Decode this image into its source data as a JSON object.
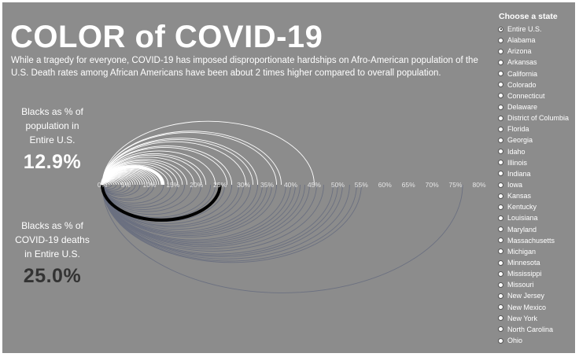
{
  "header": {
    "title": "COLOR of COVID-19",
    "subtitle": "While a tragedy for everyone, COVID-19 has imposed disproportionate hardships on Afro-American population of the U.S. Death rates among African Americans have been about 2 times higher compared to overall population."
  },
  "population_stat": {
    "label_line1": "Blacks as % of",
    "label_line2": "population in",
    "label_line3": "Entire U.S.",
    "value": "12.9%"
  },
  "deaths_stat": {
    "label_line1": "Blacks as % of",
    "label_line2": "COVID-19 deaths",
    "label_line3": "in Entire U.S.",
    "value": "25.0%"
  },
  "state_selector": {
    "title": "Choose a state",
    "selected": "Entire U.S.",
    "options": [
      "Entire U.S.",
      "Alabama",
      "Arizona",
      "Arkansas",
      "California",
      "Colorado",
      "Connecticut",
      "Delaware",
      "District of Columbia",
      "Florida",
      "Georgia",
      "Idaho",
      "Illinois",
      "Indiana",
      "Iowa",
      "Kansas",
      "Kentucky",
      "Louisiana",
      "Maryland",
      "Massachusetts",
      "Michigan",
      "Minnesota",
      "Mississippi",
      "Missouri",
      "New Jersey",
      "New Mexico",
      "New York",
      "North Carolina",
      "Ohio"
    ]
  },
  "colors": {
    "background": "#8c8c8c",
    "population_arc": "#ffffff",
    "deaths_arc": "#6b7080",
    "highlight_deaths_arc": "#000000"
  },
  "chart_data": {
    "type": "arc",
    "xlim": [
      0,
      80
    ],
    "tick_labels": [
      "0%",
      "5%",
      "10%",
      "15%",
      "20%",
      "25%",
      "30%",
      "35%",
      "40%",
      "45%",
      "50%",
      "55%",
      "60%",
      "65%",
      "70%",
      "75%",
      "80%"
    ],
    "tick_values": [
      0,
      5,
      10,
      15,
      20,
      25,
      30,
      35,
      40,
      45,
      50,
      55,
      60,
      65,
      70,
      75,
      80
    ],
    "highlight": {
      "name": "Entire U.S.",
      "population_pct": 12.9,
      "deaths_pct": 25.0
    },
    "population_pct": [
      1.0,
      1.5,
      2.0,
      2.5,
      3.0,
      3.5,
      4.0,
      4.5,
      5.0,
      5.5,
      6.0,
      6.5,
      7.0,
      7.5,
      8.0,
      8.5,
      9.0,
      9.5,
      10.0,
      10.5,
      11.0,
      11.5,
      12.0,
      12.5,
      13.0,
      14.0,
      15.0,
      16.0,
      17.0,
      18.0,
      19.5,
      21.0,
      22.0,
      24.0,
      26.5,
      27.5,
      30.5,
      32.0,
      33.0,
      37.0,
      38.0,
      45.0
    ],
    "deaths_pct": [
      1.0,
      2.0,
      3.0,
      4.0,
      5.0,
      6.0,
      7.0,
      8.0,
      10.0,
      11.0,
      13.0,
      14.5,
      16.0,
      17.5,
      19.0,
      21.0,
      23.0,
      24.0,
      26.0,
      27.5,
      29.0,
      30.0,
      31.5,
      33.0,
      34.0,
      35.0,
      36.0,
      37.0,
      39.0,
      40.0,
      41.0,
      42.0,
      43.0,
      44.0,
      45.5,
      47.0,
      49.0,
      50.0,
      51.0,
      52.5,
      54.0,
      55.0,
      76.5
    ]
  }
}
